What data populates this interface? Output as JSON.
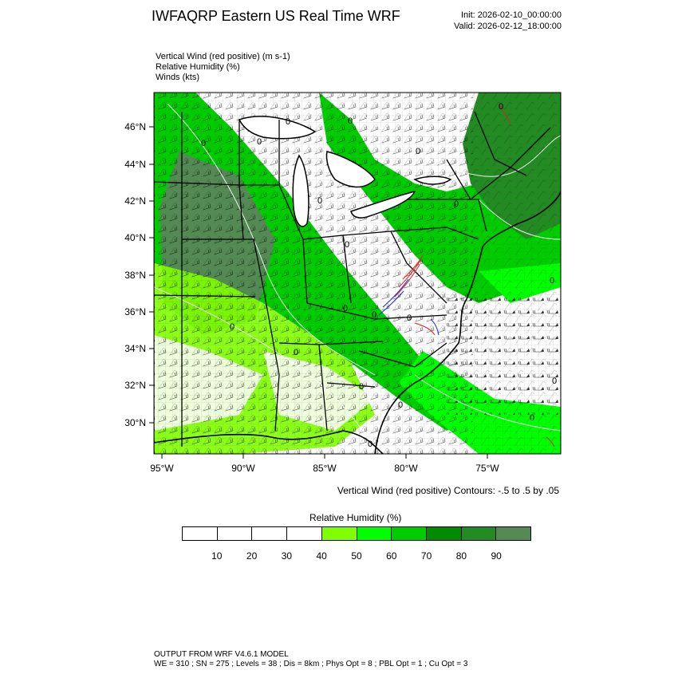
{
  "header": {
    "title": "IWFAQRP Eastern US Real Time WRF",
    "init": "Init: 2026-02-10_00:00:00",
    "valid": "Valid: 2026-02-12_18:00:00"
  },
  "fields": [
    "Vertical Wind (red positive)   (m s-1)",
    "Relative Humidity   (%)",
    "Winds   (kts)"
  ],
  "map": {
    "lat_labels": [
      "46°N",
      "44°N",
      "42°N",
      "40°N",
      "38°N",
      "36°N",
      "34°N",
      "32°N",
      "30°N"
    ],
    "lon_labels": [
      "95°W",
      "90°W",
      "85°W",
      "80°W",
      "75°W"
    ],
    "contour_zero_label": "0",
    "colors": {
      "state_border": "#000000",
      "county_border": "#333333",
      "positive_wind": "#e02020",
      "negative_wind": "#2030d0",
      "barb": "#000000"
    }
  },
  "contour_note": "Vertical Wind (red positive) Contours: -.5 to .5 by .05",
  "legend": {
    "title": "Relative Humidity   (%)",
    "labels": [
      "10",
      "20",
      "30",
      "40",
      "50",
      "60",
      "70",
      "80",
      "90"
    ],
    "colors": [
      "#ffffff",
      "#ffffff",
      "#ffffff",
      "#ffffff",
      "#7fff00",
      "#00ff00",
      "#00cd00",
      "#008b00",
      "#228b22",
      "#548b54"
    ]
  },
  "footer": {
    "line1": "OUTPUT FROM WRF V4.6.1 MODEL",
    "line2": "WE = 310 ; SN = 275 ; Levels = 38 ; Dis = 8km ; Phys Opt = 8 ; PBL Opt = 1 ; Cu Opt = 3"
  }
}
